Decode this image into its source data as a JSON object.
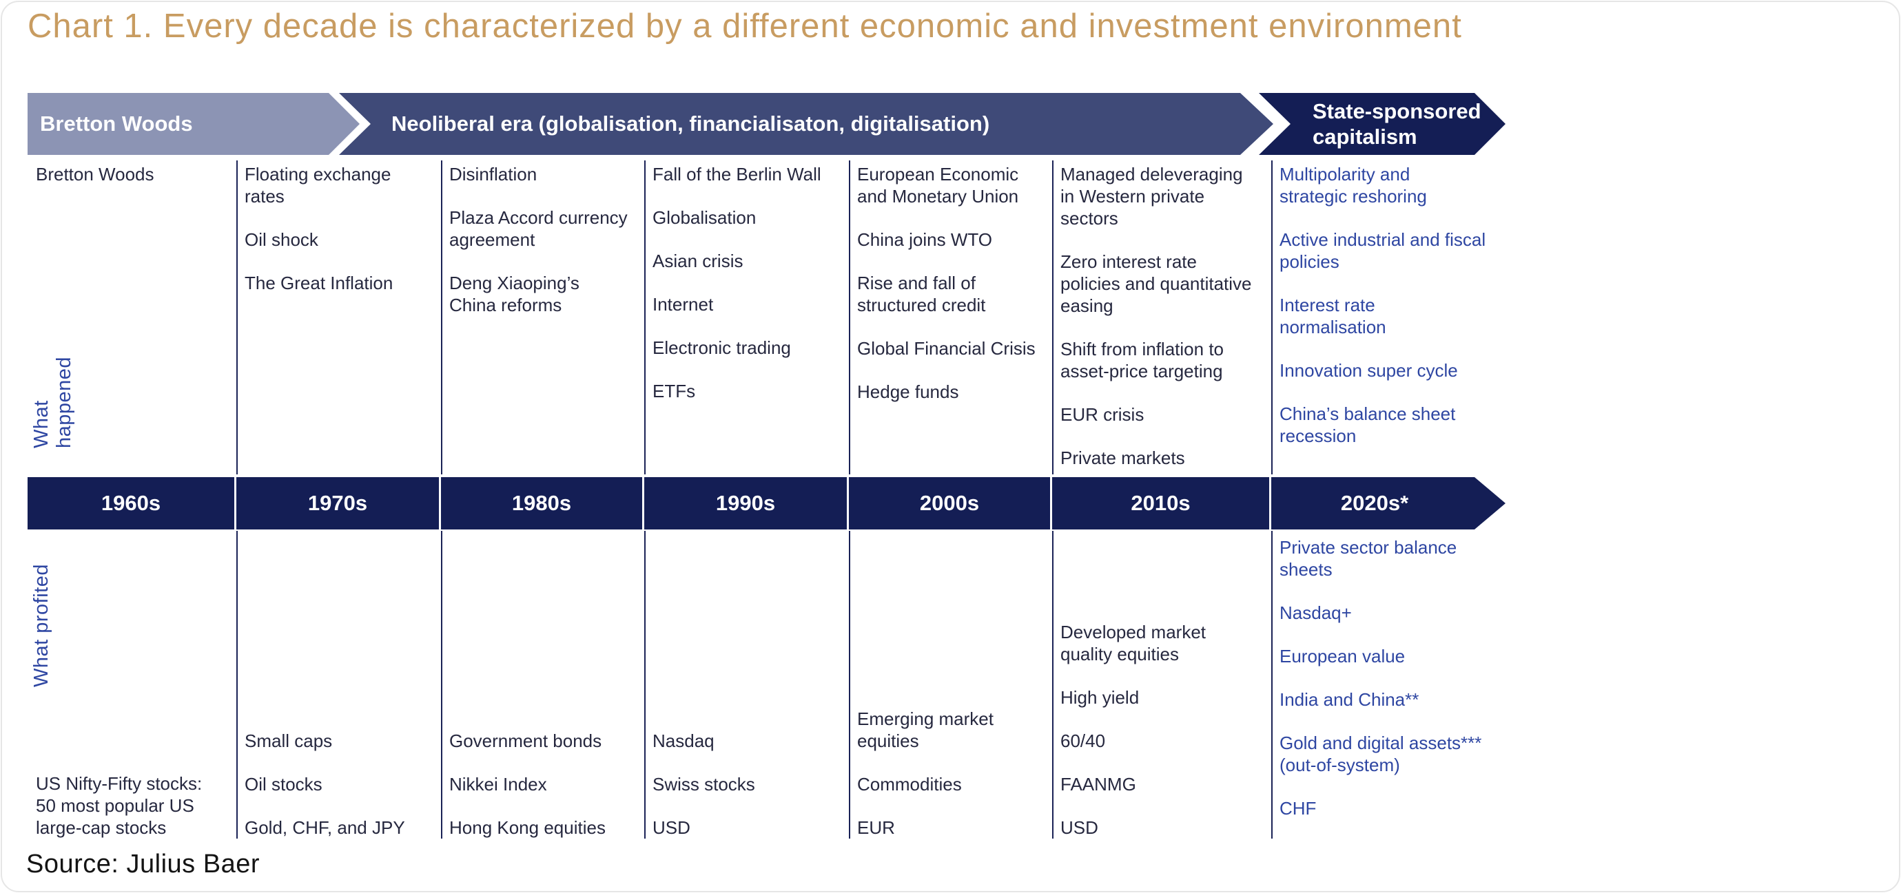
{
  "title": "Chart 1. Every decade is characterized by a different economic and investment environment",
  "source": "Source: Julius Baer",
  "row_labels": {
    "happened": "What happened",
    "profited": "What profited"
  },
  "era_arrows": [
    {
      "id": "bretton-woods",
      "label": "Bretton Woods"
    },
    {
      "id": "neoliberal",
      "label": "Neoliberal era (globalisation, financialisaton, digitalisation)"
    },
    {
      "id": "state-sponsored",
      "label": "State-sponsored\ncapitalism"
    }
  ],
  "decades": [
    {
      "label": "1960s",
      "happened": [
        "Bretton Woods"
      ],
      "profited": [
        "US Nifty-Fifty stocks:\n50 most popular US\nlarge-cap stocks"
      ]
    },
    {
      "label": "1970s",
      "happened": [
        "Floating exchange\nrates",
        "Oil shock",
        "The Great Inflation"
      ],
      "profited": [
        "Small caps",
        "Oil stocks",
        "Gold, CHF, and JPY"
      ]
    },
    {
      "label": "1980s",
      "happened": [
        "Disinflation",
        "Plaza Accord currency\nagreement",
        "Deng Xiaoping’s\nChina reforms"
      ],
      "profited": [
        "Government bonds",
        "Nikkei Index",
        "Hong Kong equities"
      ]
    },
    {
      "label": "1990s",
      "happened": [
        "Fall of the Berlin Wall",
        "Globalisation",
        "Asian crisis",
        "Internet",
        "Electronic trading",
        "ETFs"
      ],
      "profited": [
        "Nasdaq",
        "Swiss stocks",
        "USD"
      ]
    },
    {
      "label": "2000s",
      "happened": [
        "European Economic\nand Monetary Union",
        "China joins WTO",
        "Rise and fall of\nstructured credit",
        "Global Financial Crisis",
        "Hedge funds"
      ],
      "profited": [
        "Emerging market\nequities",
        "Commodities",
        "EUR"
      ]
    },
    {
      "label": "2010s",
      "happened": [
        "Managed deleveraging\nin Western private\nsectors",
        "Zero interest rate\npolicies and quantitative\neasing",
        "Shift from inflation to\nasset-price targeting",
        "EUR crisis",
        "Private markets"
      ],
      "profited": [
        "Developed market\nquality equities",
        "High yield",
        "60/40",
        "FAANMG",
        "USD"
      ]
    },
    {
      "label": "2020s*",
      "highlight": true,
      "happened": [
        "Multipolarity and\nstrategic reshoring",
        "Active industrial and fiscal\npolicies",
        "Interest rate\nnormalisation",
        "Innovation super cycle",
        "China’s balance sheet\nrecession"
      ],
      "profited": [
        "Private sector balance\nsheets",
        "Nasdaq+",
        "European value",
        "India and China**",
        "Gold and digital assets***\n(out-of-system)",
        "CHF"
      ]
    }
  ],
  "colors": {
    "title_gold": "#c89c61",
    "arrow_light": "#8c94b4",
    "arrow_mid": "#3f4a78",
    "arrow_dark": "#141e55",
    "decade_bar": "#141e55",
    "column_text": "#26283f",
    "accent_blue": "#2e46a2"
  }
}
